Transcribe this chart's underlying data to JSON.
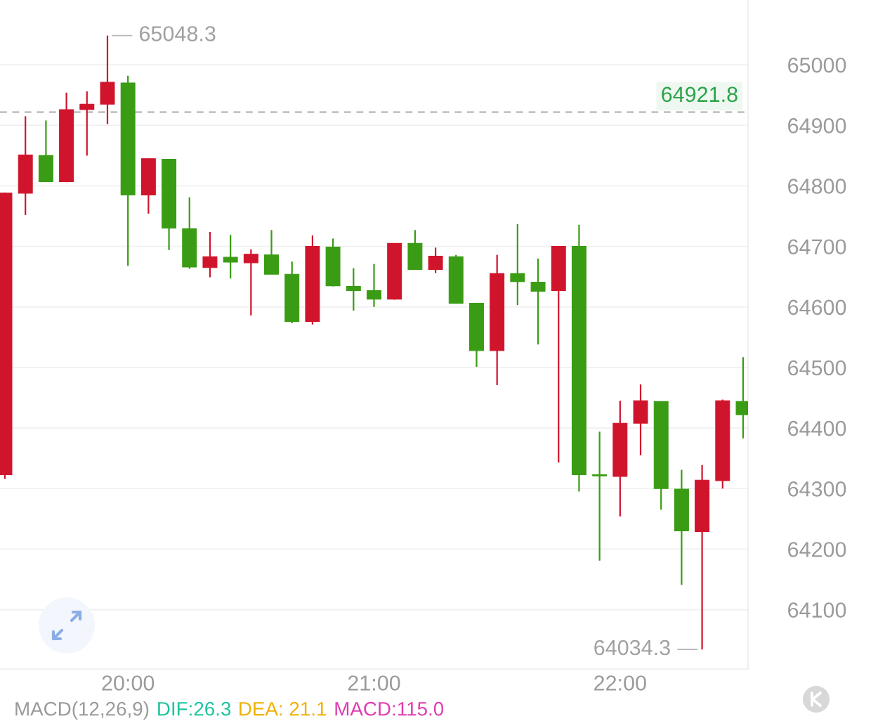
{
  "chart_data": {
    "type": "candlestick",
    "x": [
      19.5,
      19.5833,
      19.6667,
      19.75,
      19.8333,
      19.9167,
      20,
      20.0833,
      20.1667,
      20.25,
      20.3333,
      20.4167,
      20.5,
      20.5833,
      20.6667,
      20.75,
      20.8333,
      20.9167,
      21,
      21.0833,
      21.1667,
      21.25,
      21.3333,
      21.4167,
      21.5,
      21.5833,
      21.6667,
      21.75,
      21.8333,
      21.9167,
      22,
      22.0833,
      22.1667,
      22.25,
      22.3333,
      22.4167,
      22.5
    ],
    "ohlc": [
      [
        64323,
        64789,
        64316,
        64788
      ],
      [
        64788,
        64915,
        64752,
        64851
      ],
      [
        64850,
        64908,
        64807,
        64807
      ],
      [
        64807,
        64954,
        64806,
        64926
      ],
      [
        64926,
        64956,
        64850,
        64935
      ],
      [
        64935,
        65048.3,
        64902,
        64971
      ],
      [
        64970,
        64982,
        64668,
        64785
      ],
      [
        64785,
        64845,
        64754,
        64845
      ],
      [
        64844,
        64844,
        64694,
        64730
      ],
      [
        64729,
        64781,
        64663,
        64666
      ],
      [
        64665,
        64724,
        64649,
        64683
      ],
      [
        64682,
        64719,
        64647,
        64674
      ],
      [
        64673,
        64695,
        64586,
        64687
      ],
      [
        64686,
        64727,
        64654,
        64654
      ],
      [
        64654,
        64675,
        64573,
        64576
      ],
      [
        64576,
        64718,
        64571,
        64700
      ],
      [
        64699,
        64713,
        64634,
        64635
      ],
      [
        64634,
        64664,
        64594,
        64627
      ],
      [
        64627,
        64671,
        64600,
        64613
      ],
      [
        64613,
        64705,
        64612,
        64705
      ],
      [
        64705,
        64727,
        64662,
        64662
      ],
      [
        64662,
        64698,
        64656,
        64684
      ],
      [
        64683,
        64686,
        64606,
        64606
      ],
      [
        64606,
        64606,
        64501,
        64528
      ],
      [
        64528,
        64686,
        64471,
        64655
      ],
      [
        64655,
        64737,
        64603,
        64642
      ],
      [
        64641,
        64680,
        64538,
        64626
      ],
      [
        64627,
        64700,
        64343,
        64700
      ],
      [
        64700,
        64736,
        64295,
        64323
      ],
      [
        64323,
        64394,
        64181,
        64321
      ],
      [
        64320,
        64445,
        64254,
        64408
      ],
      [
        64408,
        64472,
        64355,
        64445
      ],
      [
        64444,
        64444,
        64265,
        64300
      ],
      [
        64299,
        64331,
        64141,
        64230
      ],
      [
        64229,
        64339,
        64034.3,
        64314
      ],
      [
        64313,
        64447,
        64300,
        64445
      ],
      [
        64444,
        64517,
        64383,
        64422
      ]
    ],
    "colors": [
      "#d0142c",
      "#d0142c",
      "#3a9c14",
      "#d0142c",
      "#d0142c",
      "#d0142c",
      "#3a9c14",
      "#d0142c",
      "#3a9c14",
      "#3a9c14",
      "#d0142c",
      "#3a9c14",
      "#d0142c",
      "#3a9c14",
      "#3a9c14",
      "#d0142c",
      "#3a9c14",
      "#3a9c14",
      "#3a9c14",
      "#d0142c",
      "#3a9c14",
      "#d0142c",
      "#3a9c14",
      "#3a9c14",
      "#d0142c",
      "#3a9c14",
      "#3a9c14",
      "#d0142c",
      "#3a9c14",
      "#3a9c14",
      "#d0142c",
      "#d0142c",
      "#3a9c14",
      "#3a9c14",
      "#d0142c",
      "#d0142c",
      "#3a9c14"
    ],
    "xlim": [
      19.48,
      22.52
    ],
    "xticks": [
      {
        "value": 20,
        "label": "20:00"
      },
      {
        "value": 21,
        "label": "21:00"
      },
      {
        "value": 22,
        "label": "22:00"
      }
    ],
    "ylim": [
      64002,
      65107
    ],
    "yticks": [
      64100,
      64200,
      64300,
      64400,
      64500,
      64600,
      64700,
      64800,
      64900,
      65000
    ],
    "grid": "y",
    "ref_lines": [
      {
        "axis": "y",
        "value": 64921.8,
        "label": "64921.8",
        "color": "#aaaaaa",
        "line_style": "dashed"
      }
    ],
    "annotations": [
      {
        "text": "65048.3",
        "x": 19.9167,
        "y": 65048.3
      },
      {
        "text": "64034.3",
        "x": 22.3333,
        "y": 64034.3
      },
      "MACD(12,26,9)",
      "DIF:26.3",
      "DEA: 21.1",
      "MACD:115.0"
    ]
  }
}
